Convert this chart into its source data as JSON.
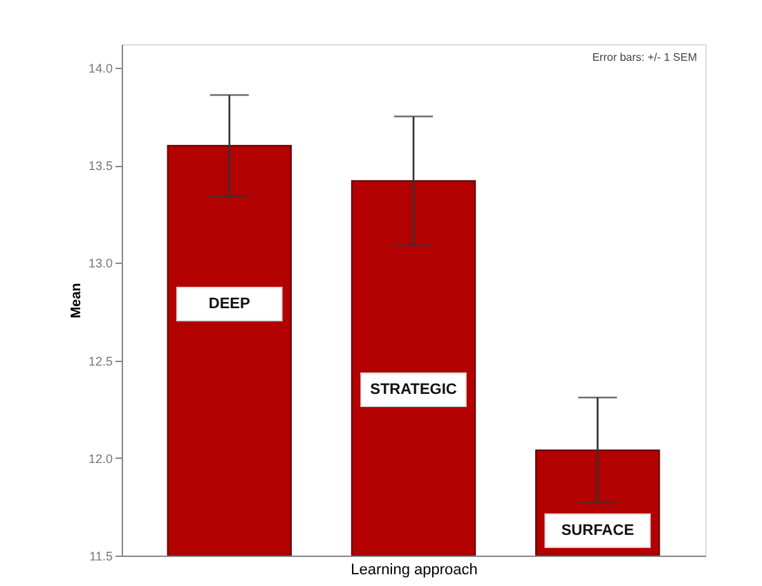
{
  "chart_data": {
    "type": "bar",
    "categories": [
      "DEEP",
      "STRATEGIC",
      "SURFACE"
    ],
    "values": [
      13.6,
      13.42,
      12.04
    ],
    "errors": [
      0.26,
      0.33,
      0.27
    ],
    "color": "#b30000",
    "xlabel": "Learning approach",
    "ylabel": "Mean",
    "ylim": [
      11.5,
      14.12
    ],
    "yticks": [
      11.5,
      {
        "value": 12,
        "label": "12.0"
      },
      12.5,
      {
        "value": 13,
        "label": "13.0"
      },
      13.5,
      {
        "value": 14,
        "label": "14.0"
      }
    ],
    "tick_labels": "y",
    "grid": false,
    "annotations": [
      "Error bars: +/- 1 SEM"
    ]
  }
}
